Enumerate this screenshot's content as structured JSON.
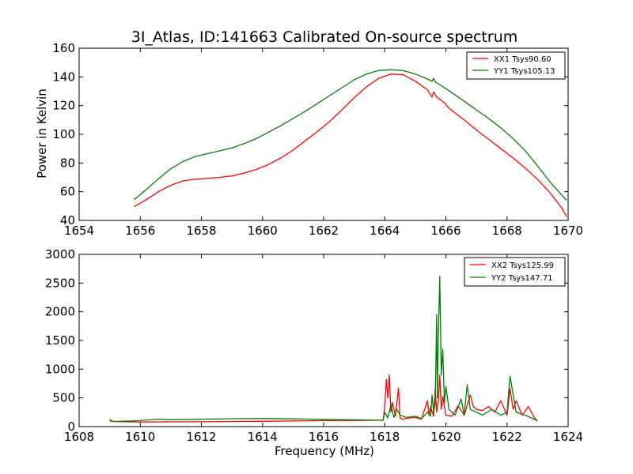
{
  "chart_data": [
    {
      "type": "line",
      "title": "3I_Atlas, ID:141663 Calibrated On-source spectrum",
      "xlabel": "",
      "ylabel": "Power in Kelvin",
      "xlim": [
        1654,
        1670
      ],
      "ylim": [
        40,
        160
      ],
      "xticks": [
        "1654",
        "1656",
        "1658",
        "1660",
        "1662",
        "1664",
        "1666",
        "1668",
        "1670"
      ],
      "yticks": [
        "40",
        "60",
        "80",
        "100",
        "120",
        "140",
        "160"
      ],
      "legend_position": "top-right",
      "series": [
        {
          "name": "XX1 Tsys90.60",
          "color": "#ff0000",
          "x": [
            1655.8,
            1656.2,
            1656.6,
            1657.0,
            1657.4,
            1657.8,
            1658.2,
            1658.6,
            1659.0,
            1659.4,
            1659.8,
            1660.2,
            1660.6,
            1661.0,
            1661.4,
            1661.8,
            1662.2,
            1662.6,
            1663.0,
            1663.4,
            1663.8,
            1664.2,
            1664.6,
            1665.0,
            1665.4,
            1665.5,
            1665.55,
            1665.6,
            1665.7,
            1665.8,
            1666.0,
            1666.02,
            1666.04,
            1666.2,
            1666.6,
            1667.0,
            1667.4,
            1667.8,
            1668.2,
            1668.6,
            1669.0,
            1669.4,
            1669.8,
            1669.95
          ],
          "y": [
            49.5,
            54.5,
            60.0,
            64.5,
            67.5,
            68.7,
            69.3,
            70.0,
            71.0,
            73.0,
            75.5,
            79.0,
            83.5,
            89.0,
            95.5,
            102.0,
            109.0,
            117.0,
            125.5,
            133.0,
            139.0,
            142.0,
            141.5,
            137.0,
            131.0,
            127.5,
            126.0,
            129.5,
            126.0,
            124.5,
            121.0,
            120.0,
            119.5,
            116.5,
            110.0,
            103.0,
            96.5,
            90.0,
            83.5,
            76.5,
            68.5,
            59.5,
            48.5,
            42.5
          ]
        },
        {
          "name": "YY1 Tsys105.13",
          "color": "#008000",
          "x": [
            1655.8,
            1656.2,
            1656.6,
            1657.0,
            1657.4,
            1657.8,
            1658.2,
            1658.6,
            1659.0,
            1659.4,
            1659.8,
            1660.2,
            1660.6,
            1661.0,
            1661.4,
            1661.8,
            1662.2,
            1662.6,
            1663.0,
            1663.4,
            1663.8,
            1664.2,
            1664.6,
            1665.0,
            1665.4,
            1665.55,
            1665.6,
            1665.65,
            1665.8,
            1666.2,
            1666.6,
            1667.0,
            1667.4,
            1667.8,
            1668.2,
            1668.6,
            1669.0,
            1669.4,
            1669.8,
            1669.95
          ],
          "y": [
            54.5,
            61.5,
            69.0,
            76.0,
            81.0,
            84.5,
            86.5,
            88.5,
            90.5,
            93.5,
            97.0,
            101.5,
            106.0,
            111.0,
            116.0,
            121.5,
            127.0,
            132.5,
            138.0,
            142.0,
            144.5,
            145.0,
            144.5,
            142.0,
            138.5,
            137.0,
            139.0,
            136.5,
            134.5,
            129.0,
            123.0,
            117.0,
            111.0,
            104.5,
            97.0,
            88.5,
            78.0,
            67.0,
            57.5,
            54.0
          ]
        }
      ]
    },
    {
      "type": "line",
      "title": "",
      "xlabel": "Frequency (MHz)",
      "ylabel": "",
      "xlim": [
        1608,
        1624
      ],
      "ylim": [
        0,
        3000
      ],
      "xticks": [
        "1608",
        "1610",
        "1612",
        "1614",
        "1616",
        "1618",
        "1620",
        "1622",
        "1624"
      ],
      "yticks": [
        "0",
        "500",
        "1000",
        "1500",
        "2000",
        "2500",
        "3000"
      ],
      "legend_position": "top-right",
      "series": [
        {
          "name": "XX2 Tsys125.99",
          "color": "#ff0000",
          "x": [
            1609.0,
            1609.1,
            1609.5,
            1610.0,
            1611.0,
            1612.0,
            1613.0,
            1614.0,
            1615.0,
            1616.0,
            1617.0,
            1617.95,
            1618.0,
            1618.05,
            1618.1,
            1618.15,
            1618.2,
            1618.25,
            1618.35,
            1618.45,
            1618.5,
            1618.6,
            1618.8,
            1619.0,
            1619.2,
            1619.4,
            1619.45,
            1619.5,
            1619.6,
            1619.65,
            1619.7,
            1619.75,
            1619.8,
            1619.85,
            1619.9,
            1620.0,
            1620.2,
            1620.4,
            1620.6,
            1620.8,
            1620.9,
            1621.0,
            1621.2,
            1621.4,
            1621.6,
            1621.8,
            1622.0,
            1622.1,
            1622.2,
            1622.3,
            1622.5,
            1622.7,
            1622.9,
            1623.0
          ],
          "y": [
            130,
            90,
            85,
            80,
            82,
            84,
            88,
            92,
            98,
            104,
            108,
            112,
            350,
            820,
            500,
            900,
            250,
            420,
            180,
            670,
            150,
            130,
            150,
            160,
            130,
            450,
            200,
            350,
            180,
            650,
            250,
            430,
            900,
            300,
            520,
            200,
            180,
            360,
            200,
            550,
            350,
            300,
            280,
            350,
            250,
            450,
            200,
            660,
            300,
            450,
            200,
            350,
            150,
            100
          ]
        },
        {
          "name": "YY2 Tsys147.71",
          "color": "#008000",
          "x": [
            1609.0,
            1609.1,
            1609.5,
            1610.0,
            1610.6,
            1611.0,
            1612.0,
            1613.0,
            1614.0,
            1615.0,
            1616.0,
            1617.0,
            1617.95,
            1618.0,
            1618.1,
            1618.2,
            1618.3,
            1618.4,
            1618.5,
            1618.7,
            1619.0,
            1619.2,
            1619.4,
            1619.5,
            1619.55,
            1619.6,
            1619.65,
            1619.7,
            1619.72,
            1619.75,
            1619.8,
            1619.85,
            1619.9,
            1619.95,
            1620.0,
            1620.1,
            1620.3,
            1620.5,
            1620.6,
            1620.7,
            1620.8,
            1621.0,
            1621.2,
            1621.5,
            1621.8,
            1622.0,
            1622.1,
            1622.3,
            1622.6,
            1622.8,
            1623.0
          ],
          "y": [
            100,
            90,
            95,
            105,
            130,
            120,
            130,
            138,
            140,
            135,
            125,
            118,
            110,
            250,
            150,
            380,
            160,
            300,
            200,
            160,
            180,
            140,
            250,
            180,
            550,
            250,
            400,
            1950,
            500,
            1450,
            2620,
            900,
            1350,
            400,
            700,
            300,
            200,
            480,
            200,
            730,
            300,
            250,
            200,
            300,
            200,
            250,
            880,
            250,
            200,
            150,
            100
          ]
        }
      ]
    }
  ]
}
